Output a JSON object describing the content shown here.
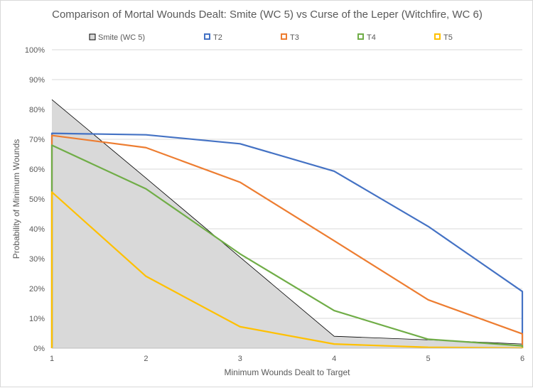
{
  "chart_data": {
    "type": "line",
    "title": "Comparison of  Mortal Wounds Dealt: Smite (WC  5) vs Curse of the Leper (Witchfire, WC 6)",
    "xlabel": "Minimum Wounds Dealt to Target",
    "ylabel": "Probability of Minimum Wounds",
    "x": [
      1,
      2,
      3,
      4,
      5,
      6
    ],
    "xlim": [
      1,
      6
    ],
    "ylim": [
      0,
      100
    ],
    "y_ticks": [
      0,
      10,
      20,
      30,
      40,
      50,
      60,
      70,
      80,
      90,
      100
    ],
    "y_tick_suffix": "%",
    "grid": true,
    "legend_position": "top",
    "series": [
      {
        "name": "Smite (WC 5)",
        "kind": "area",
        "color": "#d9d9d9",
        "edge": "#000000",
        "values": [
          83.3,
          57.0,
          30.5,
          4.0,
          2.8,
          1.4
        ]
      },
      {
        "name": "T2",
        "kind": "line",
        "color": "#4472c4",
        "values": [
          72.0,
          71.5,
          68.5,
          59.3,
          40.8,
          19.0
        ]
      },
      {
        "name": "T3",
        "kind": "line",
        "color": "#ed7d31",
        "values": [
          71.3,
          67.2,
          55.6,
          36.0,
          16.2,
          4.8
        ]
      },
      {
        "name": "T4",
        "kind": "line",
        "color": "#70ad47",
        "values": [
          68.0,
          53.4,
          31.6,
          12.6,
          3.0,
          0.8
        ]
      },
      {
        "name": "T5",
        "kind": "line",
        "color": "#ffc000",
        "values": [
          52.3,
          24.1,
          7.2,
          1.4,
          0.3,
          0.1
        ]
      }
    ]
  }
}
